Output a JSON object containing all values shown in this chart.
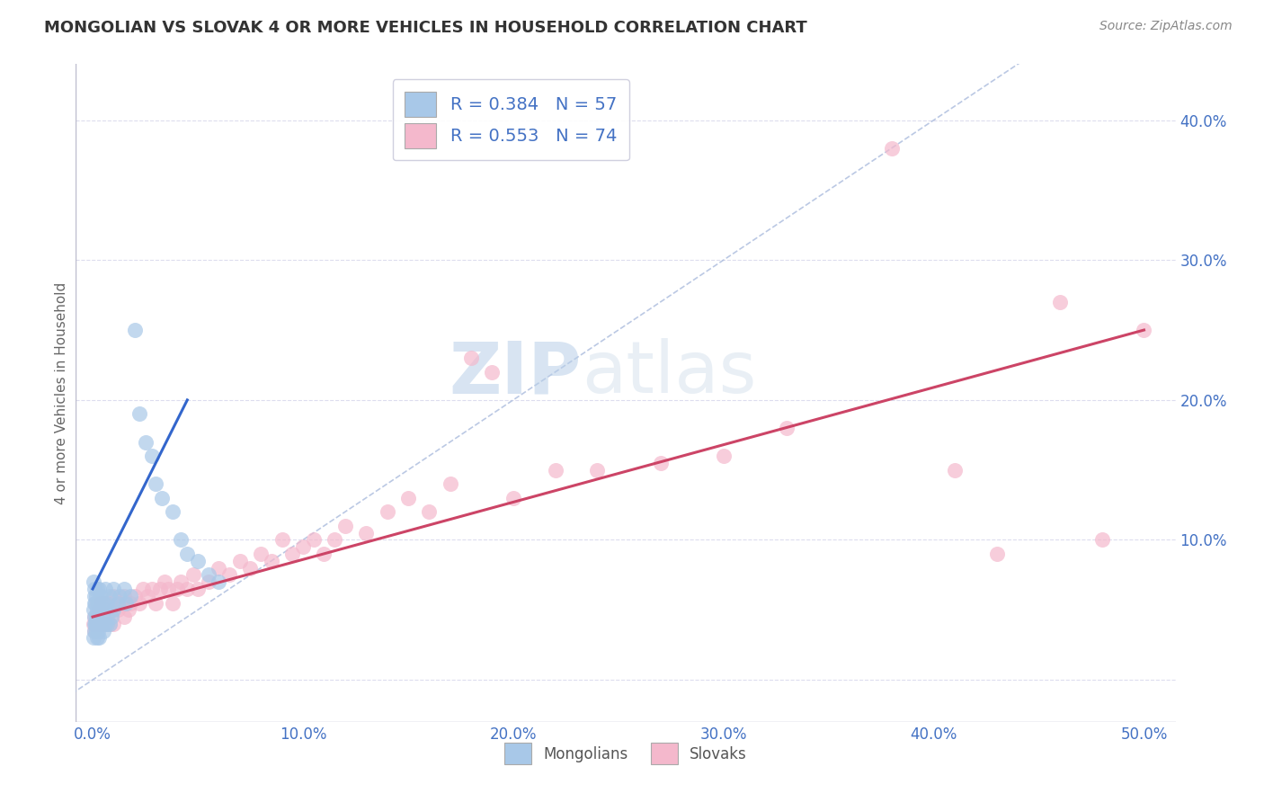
{
  "title": "MONGOLIAN VS SLOVAK 4 OR MORE VEHICLES IN HOUSEHOLD CORRELATION CHART",
  "source": "Source: ZipAtlas.com",
  "ylabel": "4 or more Vehicles in Household",
  "xlim": [
    -0.008,
    0.515
  ],
  "ylim": [
    -0.03,
    0.44
  ],
  "mongolian_color": "#a8c8e8",
  "slovak_color": "#f4b8cc",
  "mongolian_line_color": "#3366cc",
  "slovak_line_color": "#cc4466",
  "ref_line_color": "#aabbdd",
  "mongolian_R": 0.384,
  "mongolian_N": 57,
  "slovak_R": 0.553,
  "slovak_N": 74,
  "watermark_zip": "ZIP",
  "watermark_atlas": "atlas",
  "background_color": "#ffffff",
  "grid_color": "#ddddee",
  "mong_x": [
    0.0005,
    0.0005,
    0.0005,
    0.0008,
    0.0008,
    0.001,
    0.001,
    0.001,
    0.001,
    0.0012,
    0.0012,
    0.0015,
    0.0015,
    0.0015,
    0.0018,
    0.002,
    0.002,
    0.002,
    0.002,
    0.0022,
    0.0025,
    0.0025,
    0.003,
    0.003,
    0.003,
    0.003,
    0.004,
    0.004,
    0.005,
    0.005,
    0.006,
    0.006,
    0.006,
    0.007,
    0.007,
    0.008,
    0.008,
    0.009,
    0.01,
    0.01,
    0.012,
    0.013,
    0.015,
    0.016,
    0.018,
    0.02,
    0.022,
    0.025,
    0.028,
    0.03,
    0.033,
    0.038,
    0.042,
    0.045,
    0.05,
    0.055,
    0.06
  ],
  "mong_y": [
    0.03,
    0.05,
    0.07,
    0.04,
    0.06,
    0.035,
    0.045,
    0.055,
    0.065,
    0.04,
    0.055,
    0.035,
    0.045,
    0.06,
    0.04,
    0.03,
    0.04,
    0.05,
    0.065,
    0.045,
    0.035,
    0.055,
    0.03,
    0.04,
    0.05,
    0.065,
    0.04,
    0.06,
    0.035,
    0.055,
    0.04,
    0.05,
    0.065,
    0.04,
    0.055,
    0.04,
    0.06,
    0.045,
    0.05,
    0.065,
    0.055,
    0.06,
    0.065,
    0.055,
    0.06,
    0.25,
    0.19,
    0.17,
    0.16,
    0.14,
    0.13,
    0.12,
    0.1,
    0.09,
    0.085,
    0.075,
    0.07
  ],
  "slov_x": [
    0.0005,
    0.001,
    0.001,
    0.0015,
    0.002,
    0.002,
    0.003,
    0.003,
    0.004,
    0.004,
    0.005,
    0.005,
    0.006,
    0.006,
    0.007,
    0.008,
    0.008,
    0.009,
    0.01,
    0.01,
    0.012,
    0.013,
    0.015,
    0.015,
    0.017,
    0.018,
    0.02,
    0.022,
    0.024,
    0.026,
    0.028,
    0.03,
    0.032,
    0.034,
    0.036,
    0.038,
    0.04,
    0.042,
    0.045,
    0.048,
    0.05,
    0.055,
    0.06,
    0.065,
    0.07,
    0.075,
    0.08,
    0.085,
    0.09,
    0.095,
    0.1,
    0.105,
    0.11,
    0.115,
    0.12,
    0.13,
    0.14,
    0.15,
    0.16,
    0.17,
    0.18,
    0.19,
    0.2,
    0.22,
    0.24,
    0.27,
    0.3,
    0.33,
    0.38,
    0.41,
    0.43,
    0.46,
    0.48,
    0.5
  ],
  "slov_y": [
    0.04,
    0.035,
    0.045,
    0.04,
    0.04,
    0.055,
    0.04,
    0.05,
    0.04,
    0.055,
    0.04,
    0.055,
    0.04,
    0.055,
    0.045,
    0.04,
    0.055,
    0.05,
    0.04,
    0.06,
    0.05,
    0.055,
    0.045,
    0.06,
    0.05,
    0.055,
    0.06,
    0.055,
    0.065,
    0.06,
    0.065,
    0.055,
    0.065,
    0.07,
    0.065,
    0.055,
    0.065,
    0.07,
    0.065,
    0.075,
    0.065,
    0.07,
    0.08,
    0.075,
    0.085,
    0.08,
    0.09,
    0.085,
    0.1,
    0.09,
    0.095,
    0.1,
    0.09,
    0.1,
    0.11,
    0.105,
    0.12,
    0.13,
    0.12,
    0.14,
    0.23,
    0.22,
    0.13,
    0.15,
    0.15,
    0.155,
    0.16,
    0.18,
    0.38,
    0.15,
    0.09,
    0.27,
    0.1,
    0.25
  ]
}
